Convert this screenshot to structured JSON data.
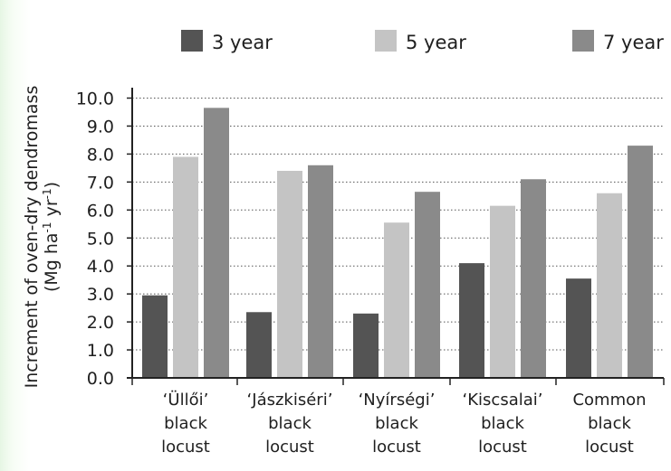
{
  "chart_data": {
    "type": "bar",
    "categories": [
      [
        "‘Üllői’",
        "black",
        "locust"
      ],
      [
        "‘Jászkiséri’",
        "black",
        "locust"
      ],
      [
        "‘Nyírségi’",
        "black",
        "locust"
      ],
      [
        "‘Kiscsalai’",
        "black",
        "locust"
      ],
      [
        "Common",
        "black",
        "locust"
      ]
    ],
    "series": [
      {
        "name": "3 year",
        "color": "#545454",
        "values": [
          2.95,
          2.35,
          2.3,
          4.1,
          3.55
        ]
      },
      {
        "name": "5 year",
        "color": "#c4c4c4",
        "values": [
          7.9,
          7.4,
          5.55,
          6.15,
          6.6
        ]
      },
      {
        "name": "7 year",
        "color": "#8a8a8a",
        "values": [
          9.65,
          7.6,
          6.65,
          7.1,
          8.3
        ]
      }
    ],
    "ylabel_lines": [
      "Increment of oven-dry dendromass",
      "(Mg ha",
      "-1",
      " yr",
      "-1",
      ")"
    ],
    "yticks": [
      "0.0",
      "1.0",
      "2.0",
      "3.0",
      "4.0",
      "5.0",
      "6.0",
      "7.0",
      "8.0",
      "9.0",
      "10.0"
    ],
    "ylim": [
      0,
      10
    ],
    "grid": true,
    "legend_position": "top"
  }
}
